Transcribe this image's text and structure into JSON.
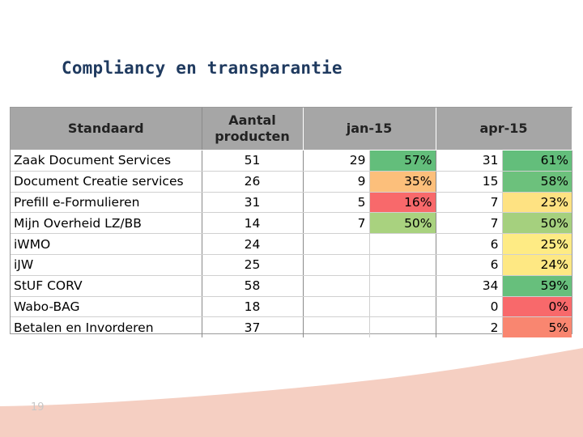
{
  "slide": {
    "title": "Compliancy en transparantie",
    "page_number": "19"
  },
  "table": {
    "headers": {
      "standaard": "Standaard",
      "aantal_line1": "Aantal",
      "aantal_line2": "producten",
      "period1": "jan-15",
      "period2": "apr-15"
    },
    "rows": [
      {
        "name": "Zaak Document Services",
        "aantal": "51",
        "jan_count": "29",
        "jan_pct": "57%",
        "apr_count": "31",
        "apr_pct": "61%"
      },
      {
        "name": "Document Creatie services",
        "aantal": "26",
        "jan_count": "9",
        "jan_pct": "35%",
        "apr_count": "15",
        "apr_pct": "58%"
      },
      {
        "name": "Prefill e-Formulieren",
        "aantal": "31",
        "jan_count": "5",
        "jan_pct": "16%",
        "apr_count": "7",
        "apr_pct": "23%"
      },
      {
        "name": "Mijn Overheid LZ/BB",
        "aantal": "14",
        "jan_count": "7",
        "jan_pct": "50%",
        "apr_count": "7",
        "apr_pct": "50%"
      },
      {
        "name": "iWMO",
        "aantal": "24",
        "jan_count": "",
        "jan_pct": "",
        "apr_count": "6",
        "apr_pct": "25%"
      },
      {
        "name": "iJW",
        "aantal": "25",
        "jan_count": "",
        "jan_pct": "",
        "apr_count": "6",
        "apr_pct": "24%"
      },
      {
        "name": "StUF CORV",
        "aantal": "58",
        "jan_count": "",
        "jan_pct": "",
        "apr_count": "34",
        "apr_pct": "59%"
      },
      {
        "name": "Wabo-BAG",
        "aantal": "18",
        "jan_count": "",
        "jan_pct": "",
        "apr_count": "0",
        "apr_pct": "0%"
      },
      {
        "name": "Betalen en Invorderen",
        "aantal": "37",
        "jan_count": "",
        "jan_pct": "",
        "apr_count": "2",
        "apr_pct": "5%"
      }
    ],
    "cell_colors": {
      "jan_pct": [
        "#63be7b",
        "#fcbf7b",
        "#f8696b",
        "#a9d27f",
        "",
        "",
        "",
        "",
        ""
      ],
      "apr_pct": [
        "#63be7b",
        "#6cc17c",
        "#fee282",
        "#a5d07e",
        "#feeb84",
        "#fee883",
        "#67bf7c",
        "#f8696b",
        "#f98670"
      ]
    }
  },
  "colors": {
    "title": "#1f3a5f",
    "header_bg": "#a6a6a6",
    "wave": "#f5cfc2"
  }
}
